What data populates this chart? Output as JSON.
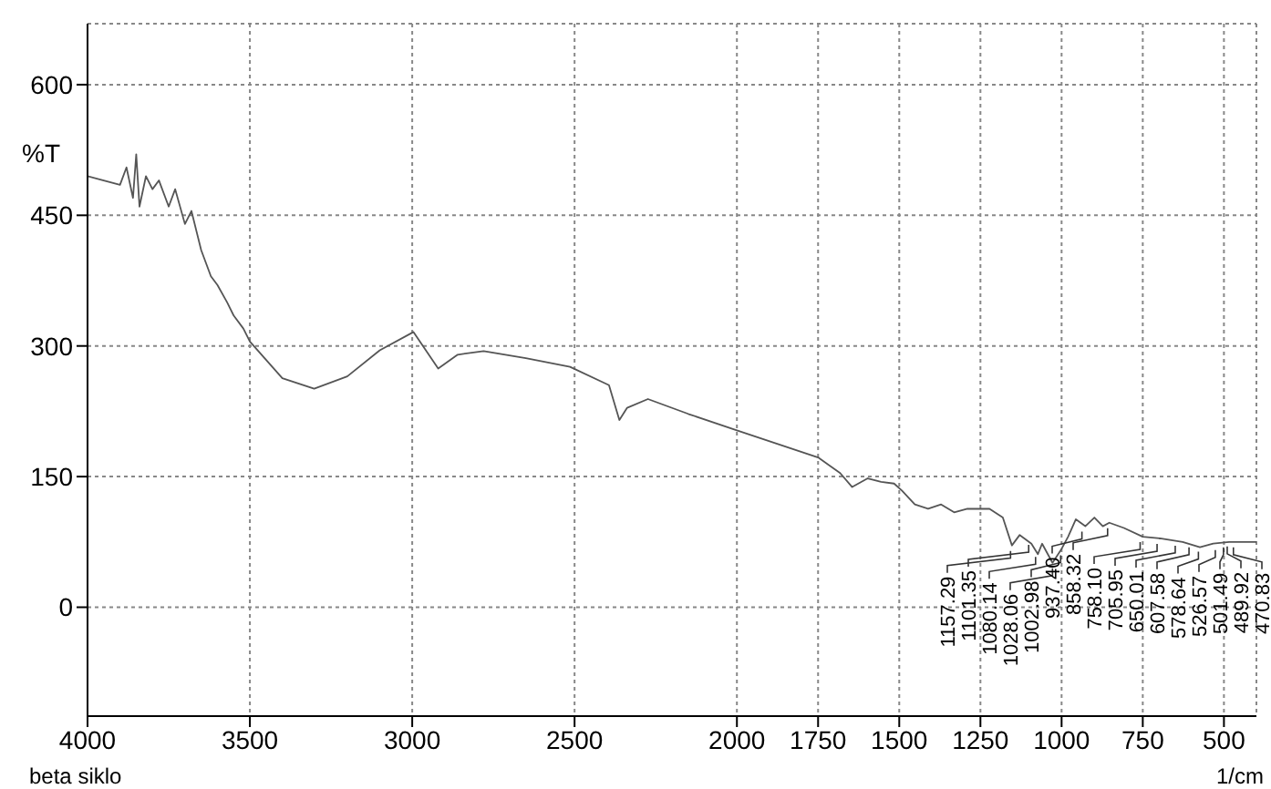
{
  "chart_data": {
    "type": "line",
    "ylabel": "%T",
    "xlabel": "1/cm",
    "annotations": [
      "beta siklo",
      {
        "text": "1157.29",
        "x": 1157.29,
        "y": 71
      },
      {
        "text": "1101.35",
        "x": 1101.35,
        "y": 78
      },
      {
        "text": "1080.14",
        "x": 1080.14,
        "y": 64
      },
      {
        "text": "1028.06",
        "x": 1028.06,
        "y": 51
      },
      {
        "text": "1002.98",
        "x": 1002.98,
        "y": 66
      },
      {
        "text": "937.40",
        "x": 937.4,
        "y": 93
      },
      {
        "text": "858.32",
        "x": 858.32,
        "y": 97
      },
      {
        "text": "758.10",
        "x": 758.1,
        "y": 81
      },
      {
        "text": "705.95",
        "x": 705.95,
        "y": 79
      },
      {
        "text": "650.01",
        "x": 650.01,
        "y": 77
      },
      {
        "text": "607.58",
        "x": 607.58,
        "y": 75
      },
      {
        "text": "578.64",
        "x": 578.64,
        "y": 70
      },
      {
        "text": "526.57",
        "x": 526.57,
        "y": 72
      },
      {
        "text": "501.49",
        "x": 501.49,
        "y": 75
      },
      {
        "text": "489.92",
        "x": 489.92,
        "y": 76
      },
      {
        "text": "470.83",
        "x": 470.83,
        "y": 75
      }
    ],
    "series": [
      {
        "color": "#555555",
        "x": [
          4000,
          3950,
          3900,
          3880,
          3860,
          3850,
          3840,
          3820,
          3800,
          3780,
          3750,
          3730,
          3700,
          3680,
          3650,
          3620,
          3600,
          3570,
          3550,
          3520,
          3500,
          3400,
          3302,
          3200,
          3100,
          2996,
          2920,
          2860,
          2780,
          2650,
          2514,
          2394,
          2362,
          2338,
          2274,
          2150,
          2000,
          1750,
          1682,
          1645,
          1597,
          1556,
          1516,
          1492,
          1452,
          1411,
          1371,
          1331,
          1290,
          1222,
          1181,
          1153,
          1129,
          1093,
          1073,
          1060,
          1028,
          1000,
          980,
          956,
          927,
          899,
          873,
          853,
          808,
          750,
          697,
          627,
          574,
          533,
          484,
          400
        ],
        "values": [
          495,
          490,
          485,
          505,
          470,
          520,
          460,
          495,
          480,
          490,
          460,
          480,
          440,
          455,
          410,
          380,
          370,
          350,
          335,
          320,
          305,
          263,
          251,
          265,
          295,
          316,
          274,
          290,
          294,
          286,
          276,
          255,
          215,
          229,
          239,
          222,
          203,
          172,
          154,
          138,
          148,
          144,
          142,
          134,
          118,
          113,
          118,
          109,
          113,
          113,
          103,
          71,
          83,
          73,
          61,
          73,
          51,
          67,
          81,
          101,
          93,
          103,
          93,
          97,
          91,
          81,
          79,
          75,
          69,
          73,
          75,
          75
        ]
      }
    ],
    "xlim": [
      4000,
      400
    ],
    "xticks": [
      4000,
      3500,
      3000,
      2500,
      2000,
      1750,
      1500,
      1250,
      1000,
      750,
      500
    ],
    "ylim": [
      -125,
      670
    ],
    "yticks": [
      0,
      150,
      300,
      450,
      600
    ],
    "grid": true,
    "line_style": "solid",
    "marker": "none"
  }
}
